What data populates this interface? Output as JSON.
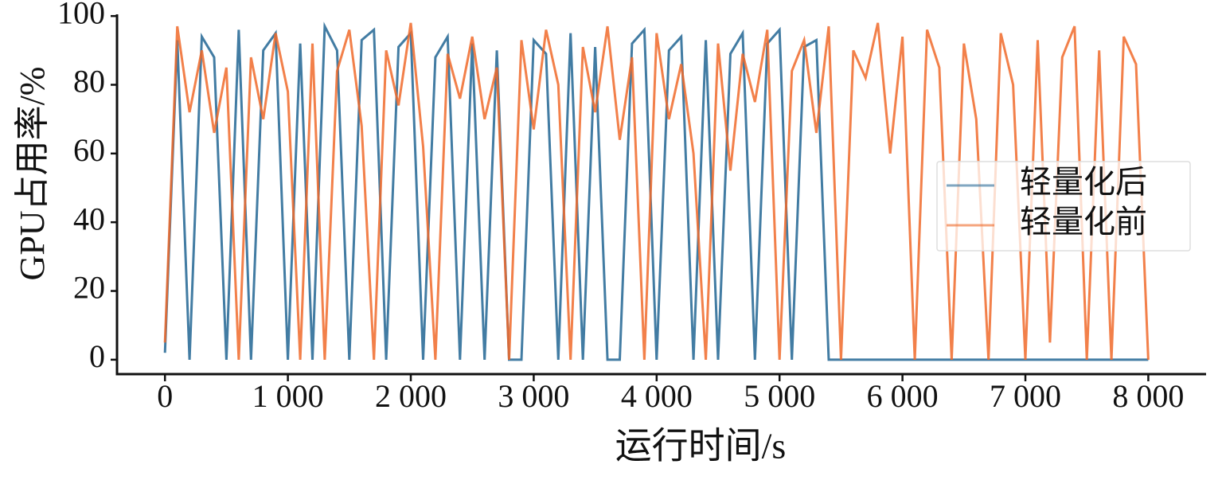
{
  "chart_data": {
    "type": "line",
    "xlabel": "运行时间/s",
    "ylabel": "GPU占用率/%",
    "x": [
      0,
      100,
      200,
      300,
      400,
      500,
      600,
      700,
      800,
      900,
      1000,
      1100,
      1200,
      1300,
      1400,
      1500,
      1600,
      1700,
      1800,
      1900,
      2000,
      2100,
      2200,
      2300,
      2400,
      2500,
      2600,
      2700,
      2800,
      2900,
      3000,
      3100,
      3200,
      3300,
      3400,
      3500,
      3600,
      3700,
      3800,
      3900,
      4000,
      4100,
      4200,
      4300,
      4400,
      4500,
      4600,
      4700,
      4800,
      4900,
      5000,
      5100,
      5200,
      5300,
      5400,
      5500,
      5600,
      5700,
      5800,
      5900,
      6000,
      6100,
      6200,
      6300,
      6400,
      6500,
      6600,
      6700,
      6800,
      6900,
      7000,
      7100,
      7200,
      7300,
      7400,
      7500,
      7600,
      7700,
      7800,
      7900,
      8000
    ],
    "series": [
      {
        "name": "轻量化后",
        "color": "#2e6e99",
        "values": [
          2,
          93,
          0,
          94,
          88,
          0,
          96,
          0,
          90,
          95,
          0,
          92,
          0,
          97,
          90,
          0,
          93,
          96,
          0,
          91,
          95,
          0,
          88,
          94,
          0,
          92,
          0,
          90,
          0,
          0,
          93,
          89,
          0,
          95,
          0,
          91,
          0,
          0,
          92,
          96,
          0,
          90,
          94,
          0,
          93,
          0,
          89,
          95,
          0,
          92,
          96,
          0,
          91,
          93,
          0,
          0,
          0,
          0,
          0,
          0,
          0,
          0,
          0,
          0,
          0,
          0,
          0,
          0,
          0,
          0,
          0,
          0,
          0,
          0,
          0,
          0,
          0,
          0,
          0,
          0,
          0
        ]
      },
      {
        "name": "轻量化前",
        "color": "#f06a2a",
        "values": [
          5,
          97,
          72,
          90,
          66,
          85,
          0,
          88,
          70,
          95,
          78,
          0,
          92,
          0,
          84,
          96,
          68,
          0,
          90,
          74,
          98,
          62,
          0,
          89,
          76,
          94,
          70,
          85,
          0,
          93,
          67,
          96,
          80,
          0,
          91,
          72,
          97,
          64,
          88,
          0,
          95,
          70,
          86,
          60,
          0,
          92,
          55,
          89,
          75,
          96,
          0,
          84,
          93,
          66,
          97,
          0,
          90,
          82,
          98,
          60,
          94,
          0,
          96,
          85,
          0,
          92,
          70,
          0,
          95,
          80,
          0,
          93,
          5,
          88,
          97,
          0,
          90,
          0,
          94,
          86,
          0
        ]
      }
    ],
    "xlim": [
      -390,
      8470
    ],
    "ylim": [
      -4.2,
      100.5
    ],
    "xticks": [
      0,
      {
        "value": 1000,
        "label": "1 000"
      },
      {
        "value": 2000,
        "label": "2 000"
      },
      {
        "value": 3000,
        "label": "3 000"
      },
      {
        "value": 4000,
        "label": "4 000"
      },
      {
        "value": 5000,
        "label": "5 000"
      },
      {
        "value": 6000,
        "label": "6 000"
      },
      {
        "value": 7000,
        "label": "7 000"
      },
      {
        "value": 8000,
        "label": "8 000"
      }
    ],
    "yticks": [
      0,
      20,
      40,
      60,
      80,
      100
    ],
    "legend": "center right",
    "grid": false
  }
}
